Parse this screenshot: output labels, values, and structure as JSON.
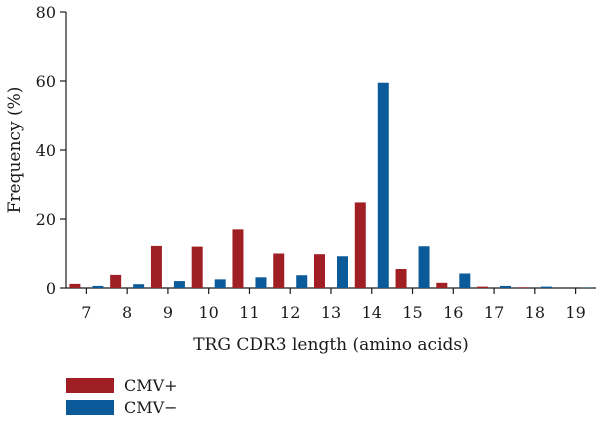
{
  "chart_data": {
    "type": "bar",
    "title": "",
    "xlabel": "TRG CDR3 length (amino acids)",
    "ylabel": "Frequency (%)",
    "ylim": [
      0,
      80
    ],
    "yticks": [
      0,
      20,
      40,
      60,
      80
    ],
    "categories": [
      "7",
      "8",
      "9",
      "10",
      "11",
      "12",
      "13",
      "14",
      "15",
      "16",
      "17",
      "18",
      "19"
    ],
    "series": [
      {
        "name": "CMV+",
        "color": "#a01f24",
        "values": [
          1.2,
          3.8,
          12.2,
          12.0,
          17.0,
          10.0,
          9.8,
          24.8,
          5.5,
          1.5,
          0.4,
          0.2,
          0.0
        ]
      },
      {
        "name": "CMV−",
        "color": "#0b5a99",
        "values": [
          0.6,
          1.1,
          2.0,
          2.5,
          3.1,
          3.7,
          9.2,
          59.5,
          12.1,
          4.2,
          0.6,
          0.4,
          0.1
        ]
      }
    ],
    "grid": false,
    "legend_position": "bottom-left"
  }
}
